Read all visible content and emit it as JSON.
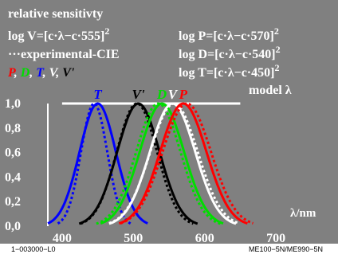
{
  "header": {
    "line1": "relative sensitivty",
    "row2_left": "log V=[c·λ−c·555]",
    "row2_right": "log P=[c·λ−c·570]",
    "row3_left": "···experimental-CIE",
    "row3_right": "log D=[c·λ−c·540]",
    "row4_right": "log T=[c·λ−c·450]",
    "exp2": "2",
    "legend_P": "P",
    "legend_D": "D",
    "legend_T": "T",
    "legend_V": "V",
    "legend_Vp": "V'",
    "sep": ",",
    "model": "model λ"
  },
  "footer": {
    "left": "1−003000−L0",
    "right": "ME100−5N/ME990−5N"
  },
  "colors": {
    "P": "#ff0000",
    "D": "#00dd00",
    "T": "#0000ff",
    "V": "#ffffff",
    "Vp": "#000000",
    "panel": "#808080"
  },
  "chart_data": {
    "type": "line",
    "xlabel": "λ/nm",
    "ylabel": "",
    "xlim": [
      380,
      720
    ],
    "ylim": [
      0,
      1.0
    ],
    "x_ticks": [
      400,
      500,
      600,
      700
    ],
    "y_ticks": [
      "1,0",
      "0,8",
      "0,6",
      "0,4",
      "0,2",
      "0,0"
    ],
    "y_tick_values": [
      1.0,
      0.8,
      0.6,
      0.4,
      0.2,
      0.0
    ],
    "peak_labels": [
      {
        "text": "T",
        "x": 450
      },
      {
        "text": "V'",
        "x": 507
      },
      {
        "text": "D",
        "x": 540
      },
      {
        "text": "V",
        "x": 555
      },
      {
        "text": "P",
        "x": 570
      }
    ],
    "series": [
      {
        "name": "T",
        "style": "solid",
        "peak": 450,
        "width": 36,
        "color": "#0000ff"
      },
      {
        "name": "T",
        "style": "dotted",
        "peak": 445,
        "width": 26,
        "color": "#0000ff"
      },
      {
        "name": "V'",
        "style": "solid",
        "peak": 507,
        "width": 42,
        "color": "#000000"
      },
      {
        "name": "V'",
        "style": "dotted",
        "peak": 505,
        "width": 40,
        "color": "#000000"
      },
      {
        "name": "D",
        "style": "solid",
        "peak": 540,
        "width": 44,
        "color": "#00dd00"
      },
      {
        "name": "D",
        "style": "dotted",
        "peak": 535,
        "width": 44,
        "color": "#00dd00"
      },
      {
        "name": "V",
        "style": "solid",
        "peak": 555,
        "width": 45,
        "color": "#ffffff"
      },
      {
        "name": "V",
        "style": "dotted",
        "peak": 557,
        "width": 47,
        "color": "#ffffff"
      },
      {
        "name": "P",
        "style": "solid",
        "peak": 570,
        "width": 46,
        "color": "#ff0000"
      },
      {
        "name": "P",
        "style": "dotted",
        "peak": 575,
        "width": 48,
        "color": "#ff0000"
      }
    ],
    "reference_line": {
      "y": 1.0,
      "x_from": 400,
      "x_to": 650
    }
  }
}
